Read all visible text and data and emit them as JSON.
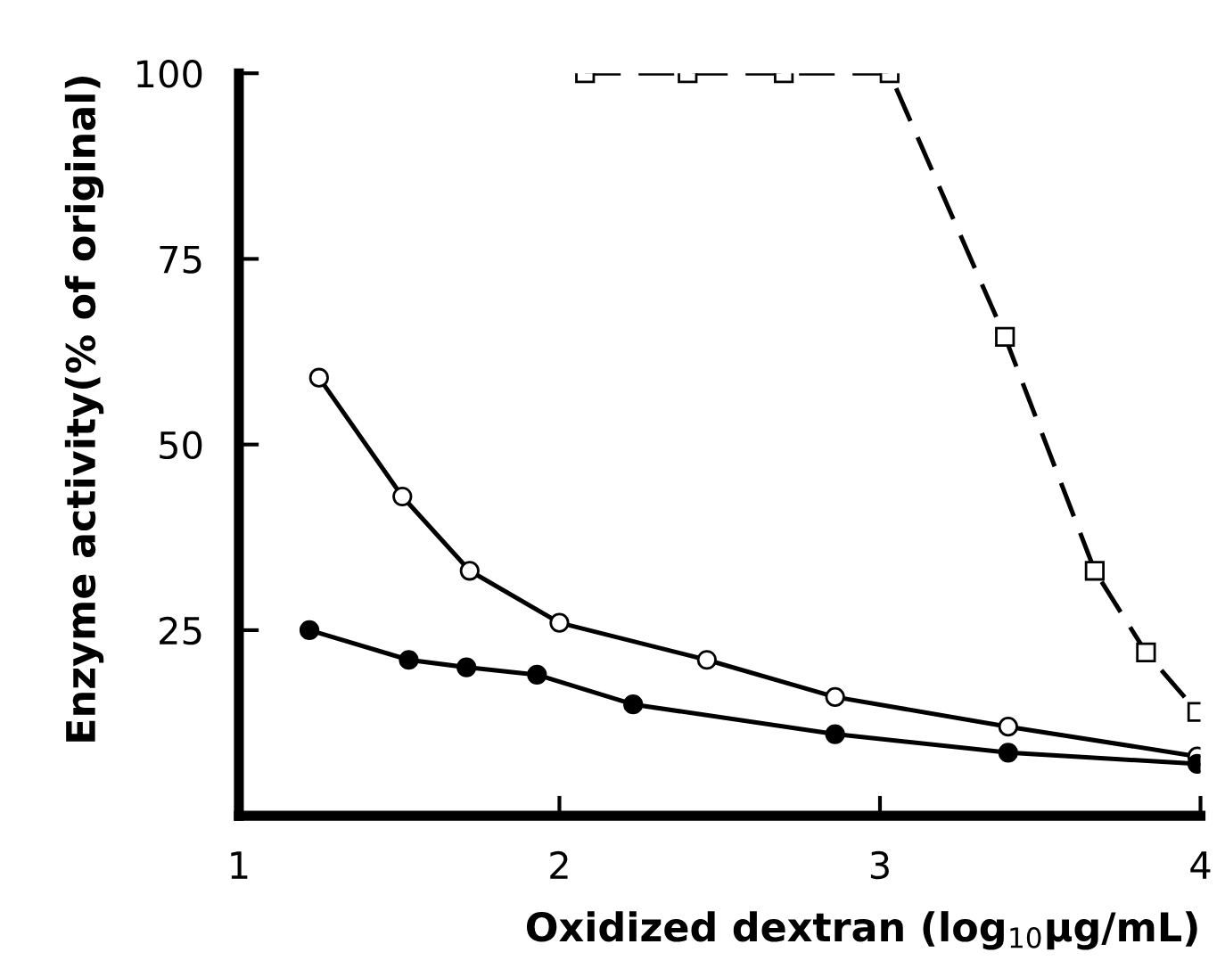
{
  "chart_data": {
    "type": "line",
    "xlabel": "Oxidized dextran (log$_{10}$μg/mL)",
    "ylabel": "Enzyme activity(% of original)",
    "xlim": [
      1,
      4
    ],
    "xticks": [
      1,
      2,
      3,
      4
    ],
    "ylim": [
      0,
      100
    ],
    "yticks": [
      25,
      50,
      75,
      100
    ],
    "grid": false,
    "legend": false,
    "series": [
      {
        "color": "#000000",
        "marker": "square",
        "line_style": "dashed",
        "x": [
          2.08,
          2.4,
          2.7,
          3.03,
          3.39,
          3.67,
          3.83,
          3.99
        ],
        "values": [
          100,
          100,
          100,
          100,
          64.5,
          33,
          22,
          14
        ]
      },
      {
        "color": "#000000",
        "marker": "circle",
        "line_style": "solid",
        "x": [
          1.25,
          1.51,
          1.72,
          2.0,
          2.46,
          2.86,
          3.4,
          3.99
        ],
        "values": [
          59,
          43,
          33,
          26,
          21,
          16,
          12,
          8
        ]
      },
      {
        "color": "#000000",
        "marker": "circle",
        "line_style": "solid",
        "x": [
          1.22,
          1.53,
          1.71,
          1.93,
          2.23,
          2.86,
          3.4,
          3.99
        ],
        "values": [
          25,
          21,
          20,
          19,
          15,
          11,
          8.5,
          7
        ]
      }
    ]
  }
}
